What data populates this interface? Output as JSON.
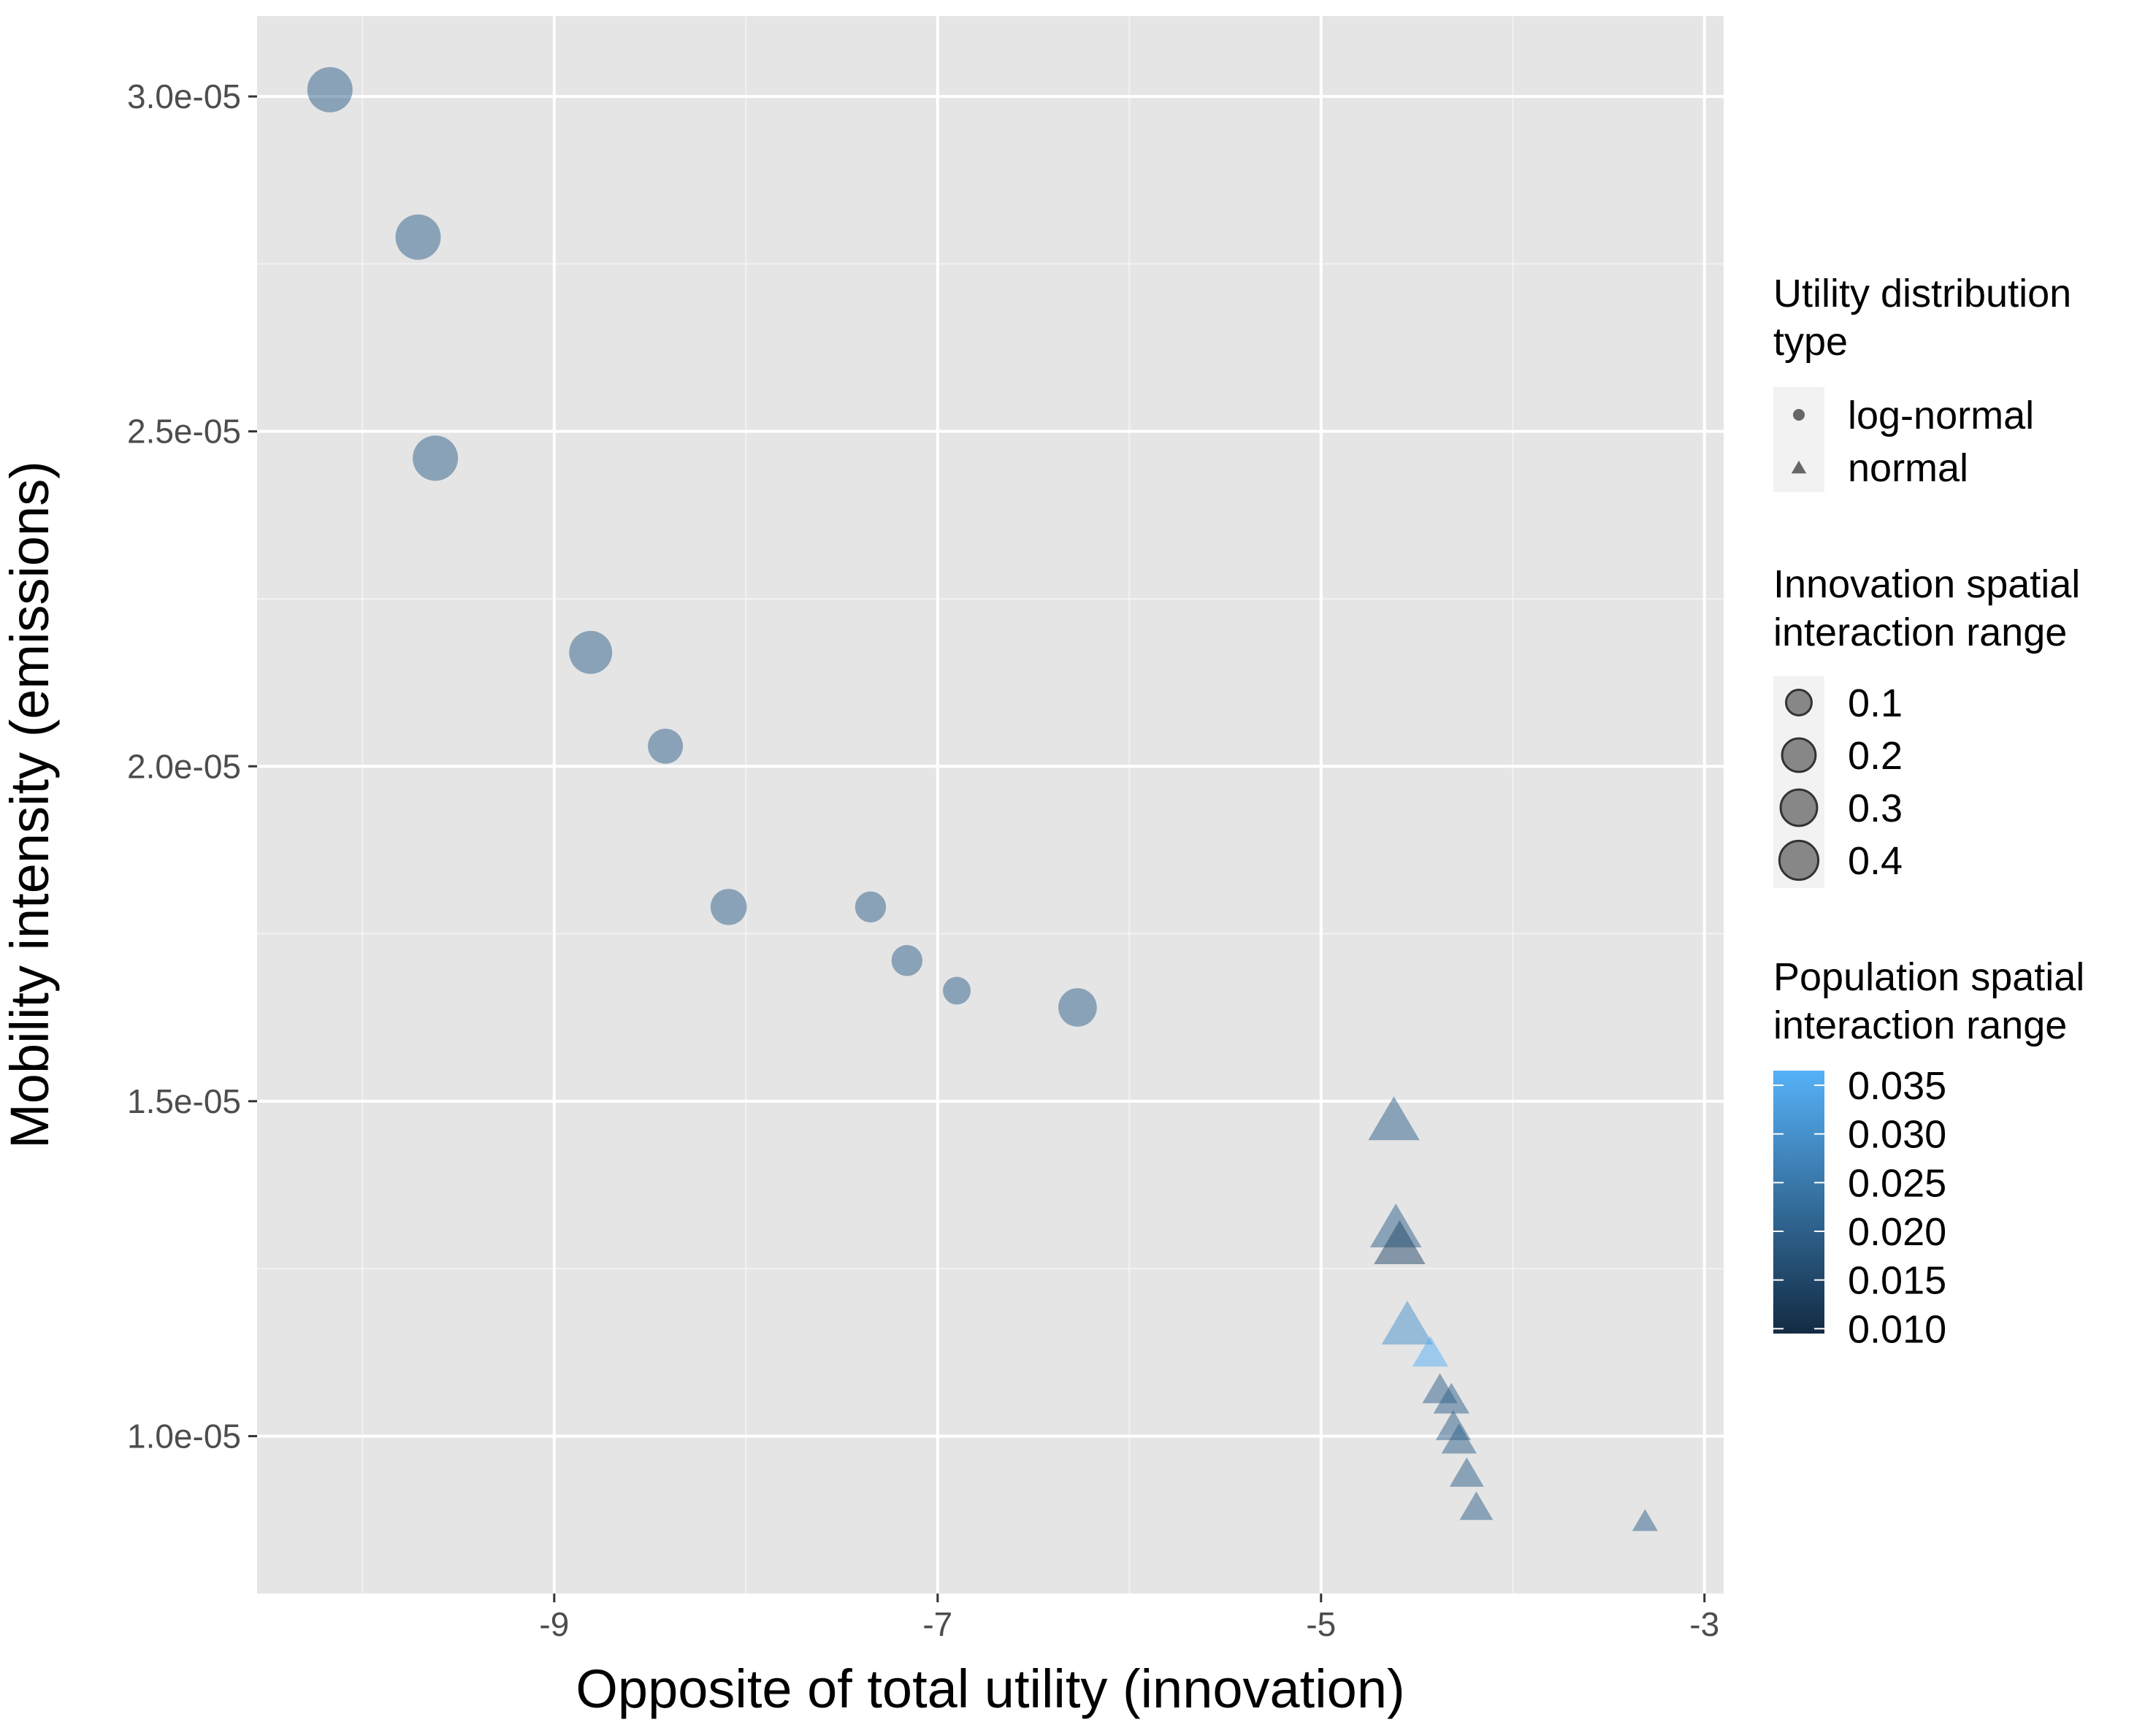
{
  "chart_data": {
    "type": "scatter",
    "title": "",
    "xlabel": "Opposite of total utility (innovation)",
    "ylabel": "Mobility intensity (emissions)",
    "xlim": [
      -10.55,
      -2.9
    ],
    "ylim": [
      7.65e-06,
      3.12e-05
    ],
    "x_ticks": [
      -9,
      -7,
      -5,
      -3
    ],
    "x_tick_labels": [
      "-9",
      "-7",
      "-5",
      "-3"
    ],
    "y_ticks": [
      1e-05,
      1.5e-05,
      2e-05,
      2.5e-05,
      3e-05
    ],
    "y_tick_labels": [
      "1.0e-05",
      "1.5e-05",
      "2.0e-05",
      "2.5e-05",
      "3.0e-05"
    ],
    "grid": true,
    "legend_position": "right",
    "legends": {
      "shape": {
        "title": [
          "Utility distribution",
          "type"
        ],
        "entries": [
          {
            "label": "log-normal",
            "shape": "circle"
          },
          {
            "label": "normal",
            "shape": "triangle"
          }
        ]
      },
      "size": {
        "title": [
          "Innovation spatial",
          "interaction range"
        ],
        "entries": [
          {
            "label": "0.1",
            "value": 0.1
          },
          {
            "label": "0.2",
            "value": 0.2
          },
          {
            "label": "0.3",
            "value": 0.3
          },
          {
            "label": "0.4",
            "value": 0.4
          }
        ]
      },
      "color": {
        "title": [
          "Population spatial",
          "interaction range"
        ],
        "low_color": "#132b43",
        "high_color": "#56b1f7",
        "range": [
          0.0095,
          0.0365
        ],
        "ticks": [
          0.01,
          0.015,
          0.02,
          0.025,
          0.03,
          0.035
        ],
        "tick_labels": [
          "0.010",
          "0.015",
          "0.020",
          "0.025",
          "0.030",
          "0.035"
        ]
      }
    },
    "series": [
      {
        "name": "log-normal",
        "shape": "circle",
        "points": [
          {
            "x": -10.17,
            "y": 3.01e-05,
            "size": 0.4,
            "color": 0.02
          },
          {
            "x": -9.71,
            "y": 2.79e-05,
            "size": 0.4,
            "color": 0.02
          },
          {
            "x": -9.62,
            "y": 2.46e-05,
            "size": 0.4,
            "color": 0.02
          },
          {
            "x": -8.81,
            "y": 2.17e-05,
            "size": 0.35,
            "color": 0.02
          },
          {
            "x": -8.42,
            "y": 2.03e-05,
            "size": 0.2,
            "color": 0.02
          },
          {
            "x": -8.09,
            "y": 1.79e-05,
            "size": 0.22,
            "color": 0.02
          },
          {
            "x": -7.35,
            "y": 1.79e-05,
            "size": 0.14,
            "color": 0.02
          },
          {
            "x": -7.16,
            "y": 1.71e-05,
            "size": 0.14,
            "color": 0.02
          },
          {
            "x": -6.9,
            "y": 1.665e-05,
            "size": 0.1,
            "color": 0.02
          },
          {
            "x": -6.27,
            "y": 1.64e-05,
            "size": 0.26,
            "color": 0.02
          }
        ]
      },
      {
        "name": "normal",
        "shape": "triangle",
        "points": [
          {
            "x": -4.62,
            "y": 1.465e-05,
            "size": 0.4,
            "color": 0.02
          },
          {
            "x": -4.61,
            "y": 1.305e-05,
            "size": 0.4,
            "color": 0.02
          },
          {
            "x": -4.59,
            "y": 1.28e-05,
            "size": 0.4,
            "color": 0.015
          },
          {
            "x": -4.55,
            "y": 1.16e-05,
            "size": 0.4,
            "color": 0.03
          },
          {
            "x": -4.43,
            "y": 1.12e-05,
            "size": 0.15,
            "color": 0.036
          },
          {
            "x": -4.38,
            "y": 1.065e-05,
            "size": 0.14,
            "color": 0.02
          },
          {
            "x": -4.32,
            "y": 1.05e-05,
            "size": 0.15,
            "color": 0.02
          },
          {
            "x": -4.31,
            "y": 1.01e-05,
            "size": 0.14,
            "color": 0.02
          },
          {
            "x": -4.28,
            "y": 9.9e-06,
            "size": 0.14,
            "color": 0.02
          },
          {
            "x": -4.24,
            "y": 9.4e-06,
            "size": 0.13,
            "color": 0.02
          },
          {
            "x": -4.19,
            "y": 8.9e-06,
            "size": 0.12,
            "color": 0.02
          },
          {
            "x": -3.31,
            "y": 8.7e-06,
            "size": 0.05,
            "color": 0.02
          }
        ]
      }
    ]
  }
}
